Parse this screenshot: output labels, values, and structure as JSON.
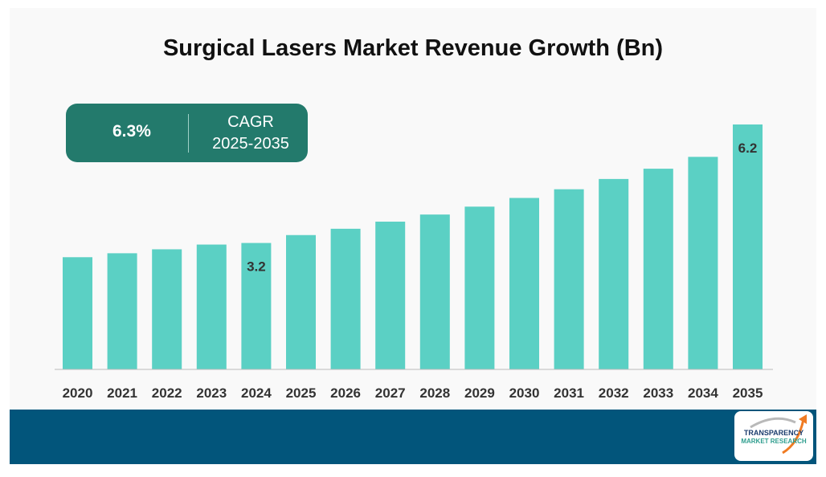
{
  "colors": {
    "bar": "#5bd0c4",
    "cagr_box": "#237a6c",
    "footer": "#02557b",
    "axis": "#bbbbbb"
  },
  "cagr": {
    "value": "6.3%",
    "label": "CAGR",
    "period": "2025-2035"
  },
  "logo": {
    "line1": "TRANSPARENCY",
    "line2": "MARKET RESEARCH",
    "icon": "arrow-swoosh-icon"
  },
  "chart_data": {
    "type": "bar",
    "title": "Surgical Lasers Market Revenue Growth (Bn)",
    "categories": [
      "2020",
      "2021",
      "2022",
      "2023",
      "2024",
      "2025",
      "2026",
      "2027",
      "2028",
      "2029",
      "2030",
      "2031",
      "2032",
      "2033",
      "2034",
      "2035"
    ],
    "values": [
      2.84,
      2.94,
      3.04,
      3.16,
      3.2,
      3.4,
      3.56,
      3.74,
      3.92,
      4.12,
      4.34,
      4.56,
      4.82,
      5.08,
      5.38,
      6.2
    ],
    "data_labels": [
      {
        "category": "2024",
        "text": "3.2"
      },
      {
        "category": "2035",
        "text": "6.2"
      }
    ],
    "xlabel": "",
    "ylabel": "",
    "ylim": [
      0,
      6.2
    ],
    "grid": false,
    "legend": "none"
  }
}
